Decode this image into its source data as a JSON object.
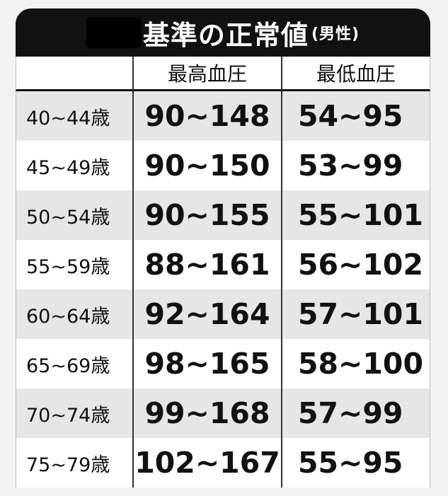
{
  "title": {
    "redacted": true,
    "main": "基準の正常値",
    "sub": "(男性)"
  },
  "columns": [
    "",
    "最高血圧",
    "最低血圧"
  ],
  "rows": [
    {
      "age": "40~44歳",
      "systolic": "90~148",
      "diastolic": "54~95"
    },
    {
      "age": "45~49歳",
      "systolic": "90~150",
      "diastolic": "53~99"
    },
    {
      "age": "50~54歳",
      "systolic": "90~155",
      "diastolic": "55~101"
    },
    {
      "age": "55~59歳",
      "systolic": "88~161",
      "diastolic": "56~102"
    },
    {
      "age": "60~64歳",
      "systolic": "92~164",
      "diastolic": "57~101"
    },
    {
      "age": "65~69歳",
      "systolic": "98~165",
      "diastolic": "58~100"
    },
    {
      "age": "70~74歳",
      "systolic": "99~168",
      "diastolic": "57~99"
    },
    {
      "age": "75~79歳",
      "systolic": "102~167",
      "diastolic": "55~95"
    }
  ]
}
